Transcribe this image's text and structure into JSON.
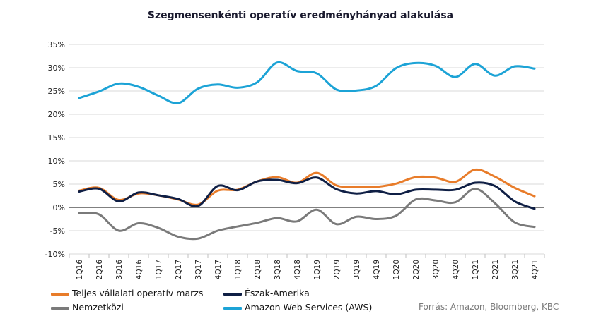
{
  "chart_data": {
    "type": "line",
    "title": "Szegmensenkénti operatív eredményhányad alakulása",
    "x": [
      "1Q16",
      "2Q16",
      "3Q16",
      "4Q16",
      "1Q17",
      "2Q17",
      "3Q17",
      "4Q17",
      "1Q18",
      "2Q18",
      "3Q18",
      "4Q18",
      "1Q19",
      "2Q19",
      "3Q19",
      "4Q19",
      "1Q20",
      "2Q20",
      "3Q20",
      "4Q20",
      "1Q21",
      "2Q21",
      "3Q21",
      "4Q21"
    ],
    "ylim": [
      -10,
      35
    ],
    "yticks": [
      -10,
      -5,
      0,
      5,
      10,
      15,
      20,
      25,
      30,
      35
    ],
    "ytick_labels": [
      "-10%",
      "-5%",
      "0%",
      "5%",
      "10%",
      "15%",
      "20%",
      "25%",
      "30%",
      "35%"
    ],
    "grid": "horizontal",
    "legend_position": "bottom",
    "series": [
      {
        "name": "Teljes vállalati operatív marzs",
        "color": "#e87c2a",
        "values": [
          3.6,
          4.2,
          1.6,
          3.0,
          2.6,
          1.7,
          0.6,
          3.6,
          3.8,
          5.6,
          6.5,
          5.3,
          7.4,
          4.7,
          4.4,
          4.4,
          5.1,
          6.5,
          6.4,
          5.5,
          8.1,
          6.6,
          4.2,
          2.4
        ]
      },
      {
        "name": "Észak-Amerika",
        "color": "#0f1f45",
        "values": [
          3.4,
          4.0,
          1.3,
          3.2,
          2.6,
          1.8,
          0.3,
          4.6,
          3.7,
          5.6,
          5.9,
          5.2,
          6.4,
          3.9,
          3.0,
          3.5,
          2.8,
          3.8,
          3.8,
          3.8,
          5.3,
          4.6,
          1.3,
          -0.3
        ]
      },
      {
        "name": "Nemzetközi",
        "color": "#7a7a7a",
        "values": [
          -1.2,
          -1.5,
          -5.0,
          -3.4,
          -4.4,
          -6.3,
          -6.7,
          -5.0,
          -4.1,
          -3.3,
          -2.3,
          -3.0,
          -0.5,
          -3.6,
          -2.0,
          -2.5,
          -1.8,
          1.7,
          1.5,
          1.1,
          4.0,
          0.9,
          -3.2,
          -4.2
        ]
      },
      {
        "name": "Amazon Web Services (AWS)",
        "color": "#1ca3d6",
        "values": [
          23.5,
          24.9,
          26.6,
          25.9,
          24.0,
          22.4,
          25.5,
          26.4,
          25.7,
          26.9,
          31.1,
          29.3,
          28.8,
          25.3,
          25.1,
          26.1,
          29.9,
          31.0,
          30.4,
          28.0,
          30.8,
          28.3,
          30.3,
          29.8
        ]
      }
    ],
    "source": "Forrás: Amazon, Bloomberg, KBC"
  }
}
